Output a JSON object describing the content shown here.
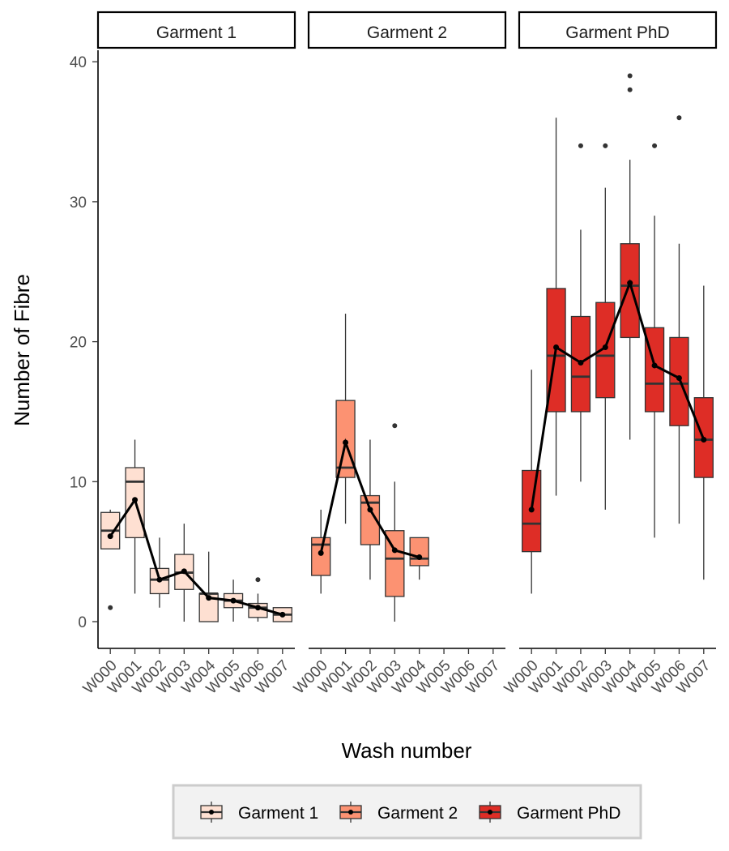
{
  "chart_data": {
    "type": "box",
    "xlabel": "Wash number",
    "ylabel": "Number of Fibre",
    "ylim": [
      -2,
      41
    ],
    "y_ticks": [
      0,
      10,
      20,
      30,
      40
    ],
    "categories": [
      "W000",
      "W001",
      "W002",
      "W003",
      "W004",
      "W005",
      "W006",
      "W007"
    ],
    "legend": {
      "position": "bottom",
      "entries": [
        {
          "name": "Garment 1",
          "color": "#FEE0D2"
        },
        {
          "name": "Garment 2",
          "color": "#FC9272"
        },
        {
          "name": "Garment PhD",
          "color": "#DE2D26"
        }
      ]
    },
    "mean_line_color": "#000000",
    "panels": [
      {
        "name": "Garment 1",
        "color": "#FEE0D2",
        "boxes": [
          {
            "x": "W000",
            "lower": 5.2,
            "q1": 5.2,
            "median": 6.5,
            "q3": 7.8,
            "upper": 8,
            "outliers": [
              1
            ]
          },
          {
            "x": "W001",
            "lower": 2,
            "q1": 6,
            "median": 10,
            "q3": 11,
            "upper": 13,
            "outliers": []
          },
          {
            "x": "W002",
            "lower": 1,
            "q1": 2,
            "median": 3,
            "q3": 3.8,
            "upper": 6,
            "outliers": []
          },
          {
            "x": "W003",
            "lower": 0,
            "q1": 2.3,
            "median": 3.5,
            "q3": 4.8,
            "upper": 7,
            "outliers": []
          },
          {
            "x": "W004",
            "lower": 0,
            "q1": 0,
            "median": 2,
            "q3": 2,
            "upper": 5,
            "outliers": []
          },
          {
            "x": "W005",
            "lower": 0,
            "q1": 1,
            "median": 1.5,
            "q3": 2,
            "upper": 3,
            "outliers": []
          },
          {
            "x": "W006",
            "lower": 0,
            "q1": 0.3,
            "median": 1,
            "q3": 1.3,
            "upper": 2,
            "outliers": [
              3
            ]
          },
          {
            "x": "W007",
            "lower": 0,
            "q1": 0,
            "median": 0.5,
            "q3": 1,
            "upper": 1,
            "outliers": []
          }
        ],
        "means": [
          {
            "x": "W000",
            "y": 6.1
          },
          {
            "x": "W001",
            "y": 8.7
          },
          {
            "x": "W002",
            "y": 3.0
          },
          {
            "x": "W003",
            "y": 3.6
          },
          {
            "x": "W004",
            "y": 1.7
          },
          {
            "x": "W005",
            "y": 1.5
          },
          {
            "x": "W006",
            "y": 1.0
          },
          {
            "x": "W007",
            "y": 0.5
          }
        ]
      },
      {
        "name": "Garment 2",
        "color": "#FC9272",
        "boxes": [
          {
            "x": "W000",
            "lower": 2,
            "q1": 3.3,
            "median": 5.5,
            "q3": 6,
            "upper": 8,
            "outliers": []
          },
          {
            "x": "W001",
            "lower": 7,
            "q1": 10.3,
            "median": 11,
            "q3": 15.8,
            "upper": 22,
            "outliers": []
          },
          {
            "x": "W002",
            "lower": 3,
            "q1": 5.5,
            "median": 8.5,
            "q3": 9,
            "upper": 13,
            "outliers": []
          },
          {
            "x": "W003",
            "lower": 0,
            "q1": 1.8,
            "median": 4.5,
            "q3": 6.5,
            "upper": 10,
            "outliers": [
              14
            ]
          },
          {
            "x": "W004",
            "lower": 3,
            "q1": 4,
            "median": 4.5,
            "q3": 6,
            "upper": 6,
            "outliers": []
          }
        ],
        "means": [
          {
            "x": "W000",
            "y": 4.9
          },
          {
            "x": "W001",
            "y": 12.8
          },
          {
            "x": "W002",
            "y": 8.0
          },
          {
            "x": "W003",
            "y": 5.1
          },
          {
            "x": "W004",
            "y": 4.6
          }
        ]
      },
      {
        "name": "Garment PhD",
        "color": "#DE2D26",
        "boxes": [
          {
            "x": "W000",
            "lower": 2,
            "q1": 5,
            "median": 7,
            "q3": 10.8,
            "upper": 18,
            "outliers": []
          },
          {
            "x": "W001",
            "lower": 9,
            "q1": 15,
            "median": 19,
            "q3": 23.8,
            "upper": 36,
            "outliers": []
          },
          {
            "x": "W002",
            "lower": 10,
            "q1": 15,
            "median": 17.5,
            "q3": 21.8,
            "upper": 28,
            "outliers": [
              34
            ]
          },
          {
            "x": "W003",
            "lower": 8,
            "q1": 16,
            "median": 19,
            "q3": 22.8,
            "upper": 31,
            "outliers": [
              34
            ]
          },
          {
            "x": "W004",
            "lower": 13,
            "q1": 20.3,
            "median": 24,
            "q3": 27,
            "upper": 33,
            "outliers": [
              38,
              39
            ]
          },
          {
            "x": "W005",
            "lower": 6,
            "q1": 15,
            "median": 17,
            "q3": 21,
            "upper": 29,
            "outliers": [
              34
            ]
          },
          {
            "x": "W006",
            "lower": 7,
            "q1": 14,
            "median": 17,
            "q3": 20.3,
            "upper": 27,
            "outliers": [
              36
            ]
          },
          {
            "x": "W007",
            "lower": 3,
            "q1": 10.3,
            "median": 13,
            "q3": 16,
            "upper": 24,
            "outliers": []
          }
        ],
        "means": [
          {
            "x": "W000",
            "y": 8.0
          },
          {
            "x": "W001",
            "y": 19.6
          },
          {
            "x": "W002",
            "y": 18.5
          },
          {
            "x": "W003",
            "y": 19.6
          },
          {
            "x": "W004",
            "y": 24.2
          },
          {
            "x": "W005",
            "y": 18.3
          },
          {
            "x": "W006",
            "y": 17.4
          },
          {
            "x": "W007",
            "y": 13.0
          }
        ]
      }
    ]
  }
}
